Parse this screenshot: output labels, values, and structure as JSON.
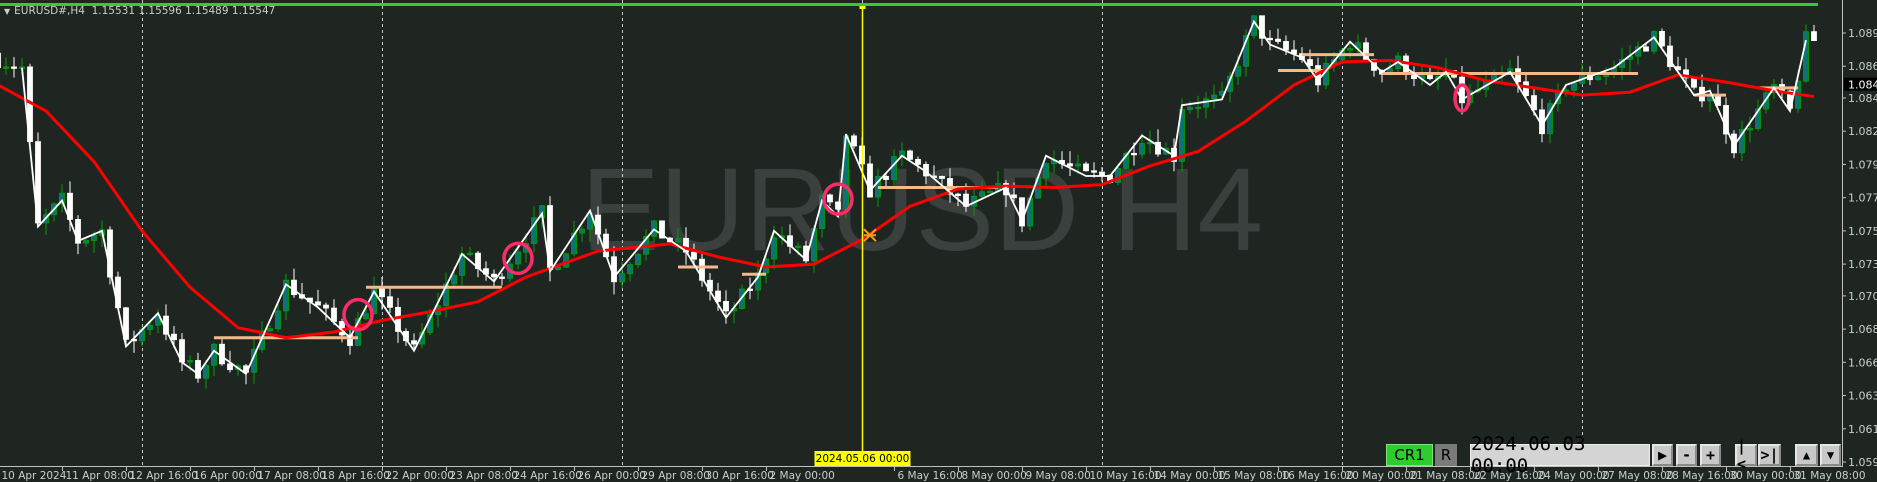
{
  "header": {
    "symbol": "EURUSD#,H4",
    "ohlc": "1.15531 1.15596 1.15489 1.15547"
  },
  "watermark": "EURUSD H4",
  "colors": {
    "background": "#1f2622",
    "bull_body": "#0b7470",
    "bull_outline": "#00a000",
    "bear_body": "#ffffff",
    "ma": "#ff0000",
    "zigzag": "#ffffff",
    "levels": "#f5b98a",
    "markers": "#ff2a6a",
    "cursor_line": "#ffff00",
    "status_bar": "#33cc33"
  },
  "controls": {
    "cr_label": "CR1",
    "r_label": "R",
    "date_value": "2024.06.03 00:00",
    "play_icon": "play-icon",
    "minus_label": "-",
    "plus_label": "+",
    "first_label": "|<",
    "last_label": ">|",
    "up_icon": "triangle-up-icon",
    "down_icon": "triangle-down-icon"
  },
  "chart_data": {
    "type": "candlestick",
    "symbol": "EURUSD#",
    "timeframe": "H4",
    "ylim": [
      1.0593,
      1.0905
    ],
    "current_price_label": "1.0848",
    "y_ticks": [
      "1.0890",
      "1.0867",
      "1.0845",
      "1.0822",
      "1.0799",
      "1.0776",
      "1.0753",
      "1.0730",
      "1.0708",
      "1.0685",
      "1.0662",
      "1.0639",
      "1.0616",
      "1.0593"
    ],
    "x_ticks": [
      "10 Apr 2024",
      "11 Apr 08:00",
      "12 Apr 16:00",
      "16 Apr 00:00",
      "17 Apr 08:00",
      "18 Apr 16:00",
      "22 Apr 00:00",
      "23 Apr 08:00",
      "24 Apr 16:00",
      "26 Apr 00:00",
      "29 Apr 08:00",
      "30 Apr 16:00",
      "2 May 00:00",
      "6 May 16:00",
      "8 May 00:00",
      "9 May 08:00",
      "10 May 16:00",
      "14 May 00:00",
      "15 May 08:00",
      "16 May 16:00",
      "20 May 00:00",
      "21 May 08:00",
      "22 May 16:00",
      "24 May 00:00",
      "27 May 08:00",
      "28 May 16:00",
      "30 May 00:00",
      "31 May 08:00"
    ],
    "cursor_time_label": "2024.05.06 00:00",
    "week_separators": [
      "2024-04-15 00:00",
      "2024-04-22 00:00",
      "2024-04-29 00:00",
      "2024-05-06 00:00",
      "2024-05-13 00:00",
      "2024-05-20 00:00",
      "2024-05-27 00:00"
    ],
    "zigzag": [
      [
        "2024-04-10 12:00",
        1.0866
      ],
      [
        "2024-04-10 20:00",
        1.0756
      ],
      [
        "2024-04-11 08:00",
        1.0774
      ],
      [
        "2024-04-11 16:00",
        1.0746
      ],
      [
        "2024-04-12 04:00",
        1.0753
      ],
      [
        "2024-04-12 16:00",
        1.0673
      ],
      [
        "2024-04-15 08:00",
        1.0696
      ],
      [
        "2024-04-15 20:00",
        1.0662
      ],
      [
        "2024-04-16 04:00",
        1.0654
      ],
      [
        "2024-04-16 12:00",
        1.067
      ],
      [
        "2024-04-17 04:00",
        1.0654
      ],
      [
        "2024-04-18 00:00",
        1.0716
      ],
      [
        "2024-04-18 16:00",
        1.07
      ],
      [
        "2024-04-19 08:00",
        1.0679
      ],
      [
        "2024-04-19 20:00",
        1.0711
      ],
      [
        "2024-04-22 16:00",
        1.067
      ],
      [
        "2024-04-23 16:00",
        1.0737
      ],
      [
        "2024-04-24 08:00",
        1.0718
      ],
      [
        "2024-04-25 08:00",
        1.0765
      ],
      [
        "2024-04-25 12:00",
        1.0725
      ],
      [
        "2024-04-26 08:00",
        1.0767
      ],
      [
        "2024-04-26 20:00",
        1.0721
      ],
      [
        "2024-04-29 16:00",
        1.0754
      ],
      [
        "2024-04-30 08:00",
        1.0739
      ],
      [
        "2024-05-01 04:00",
        1.0693
      ],
      [
        "2024-05-01 20:00",
        1.0721
      ],
      [
        "2024-05-02 04:00",
        1.0753
      ],
      [
        "2024-05-02 20:00",
        1.0733
      ],
      [
        "2024-05-03 04:00",
        1.0774
      ],
      [
        "2024-05-03 12:00",
        1.0763
      ],
      [
        "2024-05-03 16:00",
        1.082
      ],
      [
        "2024-05-06 04:00",
        1.0781
      ],
      [
        "2024-05-06 20:00",
        1.0805
      ],
      [
        "2024-05-07 08:00",
        1.0794
      ],
      [
        "2024-05-08 04:00",
        1.077
      ],
      [
        "2024-05-09 00:00",
        1.0783
      ],
      [
        "2024-05-09 08:00",
        1.076
      ],
      [
        "2024-05-09 20:00",
        1.0805
      ],
      [
        "2024-05-10 16:00",
        1.0791
      ],
      [
        "2024-05-13 04:00",
        1.0791
      ],
      [
        "2024-05-13 20:00",
        1.0819
      ],
      [
        "2024-05-14 12:00",
        1.0805
      ],
      [
        "2024-05-14 16:00",
        1.084
      ],
      [
        "2024-05-15 12:00",
        1.0844
      ],
      [
        "2024-05-16 04:00",
        1.0898
      ],
      [
        "2024-05-16 12:00",
        1.0882
      ],
      [
        "2024-05-17 04:00",
        1.0873
      ],
      [
        "2024-05-17 12:00",
        1.0857
      ],
      [
        "2024-05-20 04:00",
        1.0884
      ],
      [
        "2024-05-20 20:00",
        1.0863
      ],
      [
        "2024-05-21 04:00",
        1.087
      ],
      [
        "2024-05-21 20:00",
        1.0854
      ],
      [
        "2024-05-22 04:00",
        1.0863
      ],
      [
        "2024-05-22 12:00",
        1.0844
      ],
      [
        "2024-05-23 12:00",
        1.0863
      ],
      [
        "2024-05-24 04:00",
        1.0826
      ],
      [
        "2024-05-24 16:00",
        1.0854
      ],
      [
        "2024-05-27 16:00",
        1.0866
      ],
      [
        "2024-05-28 12:00",
        1.0887
      ],
      [
        "2024-05-29 08:00",
        1.0847
      ],
      [
        "2024-05-29 16:00",
        1.085
      ],
      [
        "2024-05-30 04:00",
        1.0812
      ],
      [
        "2024-05-31 00:00",
        1.0852
      ],
      [
        "2024-05-31 08:00",
        1.0836
      ],
      [
        "2024-05-31 16:00",
        1.0885
      ]
    ],
    "moving_average": [
      [
        "2024-04-10 00:00",
        1.0854
      ],
      [
        "2024-04-11 00:00",
        1.0836
      ],
      [
        "2024-04-12 00:00",
        1.0801
      ],
      [
        "2024-04-15 00:00",
        1.0753
      ],
      [
        "2024-04-16 00:00",
        1.0714
      ],
      [
        "2024-04-17 00:00",
        1.0686
      ],
      [
        "2024-04-18 00:00",
        1.0679
      ],
      [
        "2024-04-19 00:00",
        1.0683
      ],
      [
        "2024-04-22 00:00",
        1.0691
      ],
      [
        "2024-04-23 00:00",
        1.0697
      ],
      [
        "2024-04-24 00:00",
        1.0704
      ],
      [
        "2024-04-25 00:00",
        1.0721
      ],
      [
        "2024-04-26 12:00",
        1.0739
      ],
      [
        "2024-04-30 00:00",
        1.0744
      ],
      [
        "2024-05-01 00:00",
        1.0735
      ],
      [
        "2024-05-02 00:00",
        1.0728
      ],
      [
        "2024-05-03 00:00",
        1.073
      ],
      [
        "2024-05-06 00:00",
        1.0747
      ],
      [
        "2024-05-07 00:00",
        1.077
      ],
      [
        "2024-05-08 00:00",
        1.0782
      ],
      [
        "2024-05-09 00:00",
        1.0784
      ],
      [
        "2024-05-10 00:00",
        1.0783
      ],
      [
        "2024-05-13 00:00",
        1.0785
      ],
      [
        "2024-05-14 00:00",
        1.0798
      ],
      [
        "2024-05-15 00:00",
        1.0808
      ],
      [
        "2024-05-16 00:00",
        1.0829
      ],
      [
        "2024-05-17 00:00",
        1.0854
      ],
      [
        "2024-05-20 00:00",
        1.087
      ],
      [
        "2024-05-21 00:00",
        1.0871
      ],
      [
        "2024-05-22 00:00",
        1.0866
      ],
      [
        "2024-05-23 00:00",
        1.0857
      ],
      [
        "2024-05-24 00:00",
        1.0852
      ],
      [
        "2024-05-27 00:00",
        1.0847
      ],
      [
        "2024-05-28 00:00",
        1.0849
      ],
      [
        "2024-05-29 00:00",
        1.0861
      ],
      [
        "2024-05-30 00:00",
        1.0856
      ],
      [
        "2024-05-31 00:00",
        1.085
      ],
      [
        "2024-05-31 20:00",
        1.0846
      ]
    ],
    "levels": [
      [
        "2024-04-16 12:00",
        "2024-04-19 12:00",
        1.0679
      ],
      [
        "2024-04-19 16:00",
        "2024-04-24 12:00",
        1.0714
      ],
      [
        "2024-04-30 04:00",
        "2024-05-01 00:00",
        1.0728
      ],
      [
        "2024-05-01 12:00",
        "2024-05-02 00:00",
        1.0723
      ],
      [
        "2024-05-06 08:00",
        "2024-05-08 20:00",
        1.0783
      ],
      [
        "2024-05-16 16:00",
        "2024-05-17 16:00",
        1.0864
      ],
      [
        "2024-05-17 04:00",
        "2024-05-20 16:00",
        1.0875
      ],
      [
        "2024-05-20 20:00",
        "2024-05-28 04:00",
        1.0862
      ],
      [
        "2024-05-29 08:00",
        "2024-05-30 00:00",
        1.0847
      ],
      [
        "2024-05-30 16:00",
        "2024-05-31 12:00",
        1.0852
      ]
    ],
    "circle_markers": [
      [
        "2024-04-19 12:00",
        1.0695
      ],
      [
        "2024-04-24 20:00",
        1.0734
      ],
      [
        "2024-05-03 12:00",
        1.0775
      ],
      [
        "2024-05-22 12:00",
        1.0845
      ]
    ],
    "cursor_time": "2024-05-06 00:00",
    "cross_marker": [
      "2024-05-06 04:00",
      1.075
    ]
  }
}
